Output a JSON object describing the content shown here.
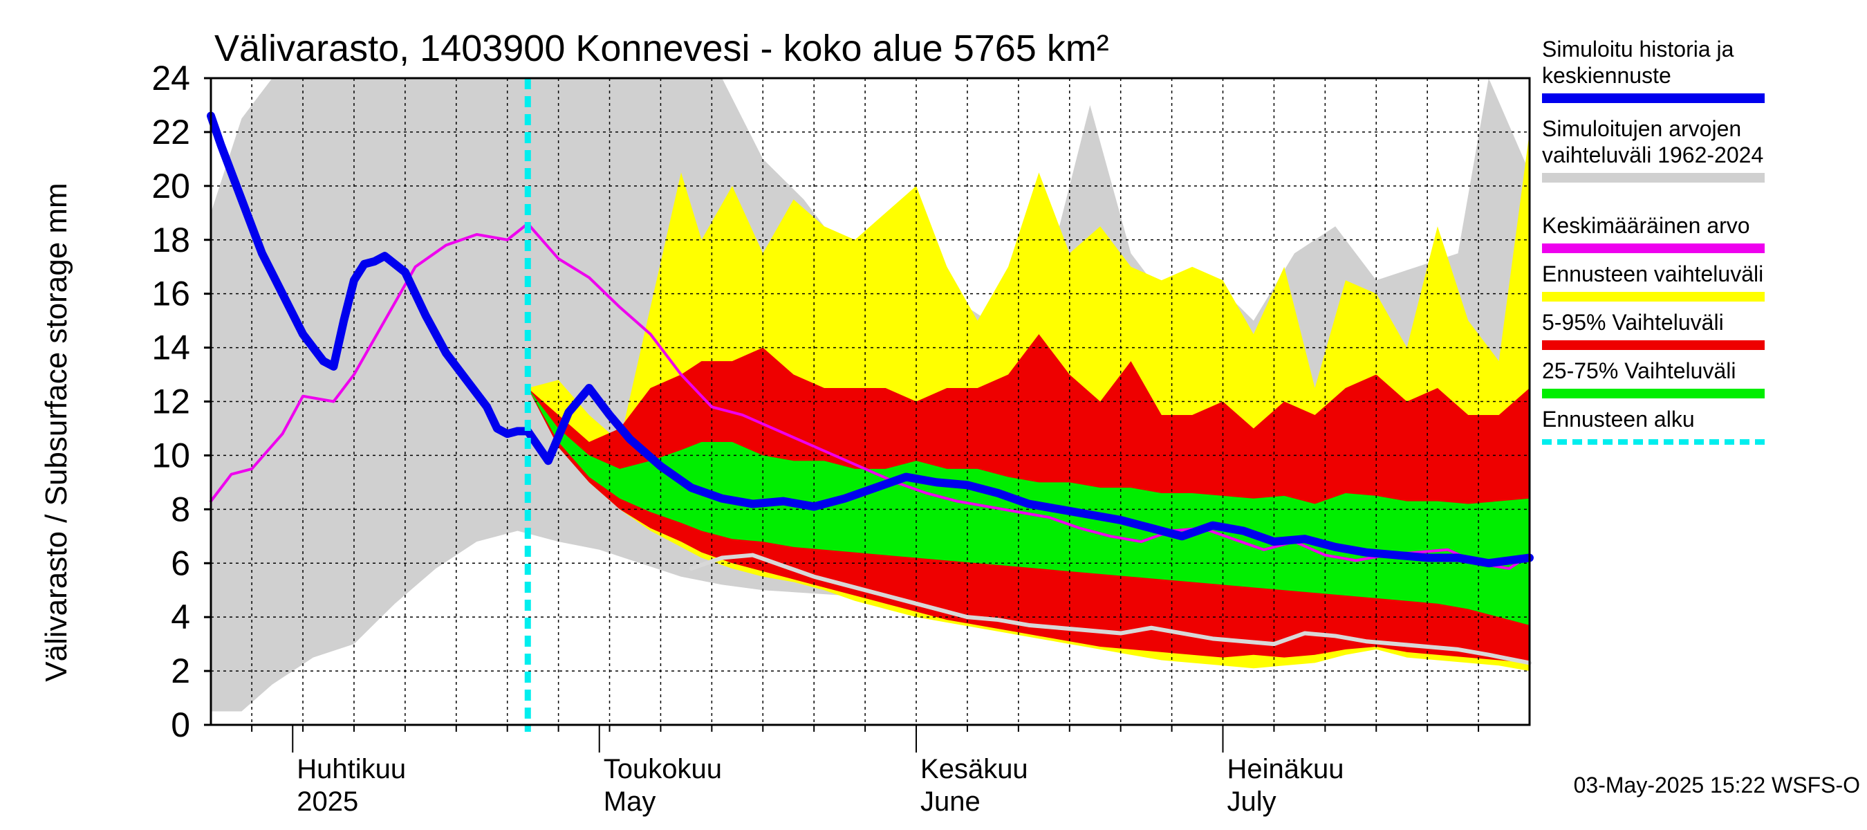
{
  "chart_data": {
    "type": "area",
    "title": "Välivarasto, 1403900 Konnevesi - koko alue 5765 km²",
    "ylabel": "Välivarasto / Subsurface storage  mm",
    "ylim": [
      0,
      24
    ],
    "yticks": [
      0,
      2,
      4,
      6,
      8,
      10,
      12,
      14,
      16,
      18,
      20,
      22,
      24
    ],
    "xlim": [
      "2025-03-24",
      "2025-07-31"
    ],
    "forecast_start": "2025-04-24",
    "grid": true,
    "legend_position": "right",
    "month_labels": [
      {
        "date": "2025-04-01",
        "line1": "Huhtikuu",
        "line2": "2025"
      },
      {
        "date": "2025-05-01",
        "line1": "Toukokuu",
        "line2": "May"
      },
      {
        "date": "2025-06-01",
        "line1": "Kesäkuu",
        "line2": "June"
      },
      {
        "date": "2025-07-01",
        "line1": "Heinäkuu",
        "line2": "July"
      }
    ],
    "timestamp": "03-May-2025 15:22 WSFS-O",
    "legend": [
      {
        "label": "Simuloitu historia ja keskiennuste",
        "color": "#0000ee",
        "style": "solid"
      },
      {
        "label": "Simuloitujen arvojen vaihteluväli 1962-2024",
        "color": "#d0d0d0",
        "style": "solid"
      },
      {
        "label": "Keskimääräinen arvo",
        "color": "#ee00ee",
        "style": "solid"
      },
      {
        "label": "Ennusteen vaihteluväli",
        "color": "#ffff00",
        "style": "solid"
      },
      {
        "label": "5-95% Vaihteluväli",
        "color": "#ee0000",
        "style": "solid"
      },
      {
        "label": "25-75% Vaihteluväli",
        "color": "#00ee00",
        "style": "solid"
      },
      {
        "label": "Ennusteen alku",
        "color": "#00eeee",
        "style": "dashed"
      }
    ],
    "series": [
      {
        "name": "Simuloitujen arvojen vaihteluväli 1962-2024",
        "kind": "band",
        "color": "#d0d0d0",
        "x": [
          "2025-03-24",
          "2025-03-27",
          "2025-03-30",
          "2025-04-03",
          "2025-04-07",
          "2025-04-11",
          "2025-04-15",
          "2025-04-19",
          "2025-04-23",
          "2025-04-27",
          "2025-05-01",
          "2025-05-05",
          "2025-05-09",
          "2025-05-13",
          "2025-05-17",
          "2025-05-21",
          "2025-05-25",
          "2025-05-29",
          "2025-06-02",
          "2025-06-06",
          "2025-06-10",
          "2025-06-14",
          "2025-06-18",
          "2025-06-22",
          "2025-06-26",
          "2025-06-30",
          "2025-07-04",
          "2025-07-08",
          "2025-07-12",
          "2025-07-16",
          "2025-07-20",
          "2025-07-24",
          "2025-07-27",
          "2025-07-31"
        ],
        "low": [
          0.5,
          0.5,
          1.5,
          2.5,
          3.0,
          4.5,
          5.8,
          6.8,
          7.2,
          6.8,
          6.5,
          6.0,
          5.5,
          5.2,
          5.0,
          4.9,
          4.8,
          4.7,
          4.6,
          4.6,
          4.7,
          4.5,
          4.4,
          4.3,
          4.2,
          4.1,
          4.0,
          3.9,
          3.8,
          3.6,
          3.4,
          3.2,
          3.0,
          2.8
        ],
        "high": [
          19.0,
          22.5,
          24.0,
          24.0,
          24.0,
          24.0,
          24.0,
          24.0,
          24.0,
          24.0,
          24.0,
          24.0,
          24.0,
          24.0,
          21.0,
          19.5,
          17.5,
          16.5,
          18.5,
          15.5,
          14.5,
          17.0,
          23.0,
          17.5,
          15.5,
          16.5,
          15.0,
          17.5,
          18.5,
          16.5,
          17.0,
          17.5,
          24.0,
          20.5
        ]
      },
      {
        "name": "Ennusteen vaihteluväli",
        "kind": "band",
        "color": "#ffff00",
        "x": [
          "2025-04-24",
          "2025-04-27",
          "2025-04-30",
          "2025-05-03",
          "2025-05-06",
          "2025-05-09",
          "2025-05-11",
          "2025-05-14",
          "2025-05-17",
          "2025-05-20",
          "2025-05-23",
          "2025-05-26",
          "2025-05-29",
          "2025-06-01",
          "2025-06-04",
          "2025-06-07",
          "2025-06-10",
          "2025-06-13",
          "2025-06-16",
          "2025-06-19",
          "2025-06-22",
          "2025-06-25",
          "2025-06-28",
          "2025-07-01",
          "2025-07-04",
          "2025-07-07",
          "2025-07-10",
          "2025-07-13",
          "2025-07-16",
          "2025-07-19",
          "2025-07-22",
          "2025-07-25",
          "2025-07-28",
          "2025-07-31"
        ],
        "low": [
          12.5,
          10.5,
          9.0,
          8.0,
          7.2,
          6.6,
          6.2,
          5.8,
          5.5,
          5.3,
          5.0,
          4.6,
          4.3,
          4.0,
          3.8,
          3.6,
          3.4,
          3.2,
          3.0,
          2.8,
          2.6,
          2.4,
          2.3,
          2.2,
          2.1,
          2.2,
          2.3,
          2.6,
          2.8,
          2.5,
          2.4,
          2.3,
          2.2,
          2.0
        ],
        "high": [
          12.5,
          12.8,
          11.5,
          10.5,
          15.5,
          20.5,
          18.0,
          20.0,
          17.5,
          19.5,
          18.5,
          18.0,
          19.0,
          20.0,
          17.0,
          15.0,
          17.0,
          20.5,
          17.5,
          18.5,
          17.0,
          16.5,
          17.0,
          16.5,
          14.5,
          17.0,
          12.5,
          16.5,
          16.0,
          14.0,
          18.5,
          15.0,
          13.5,
          22.0
        ]
      },
      {
        "name": "5-95% Vaihteluväli",
        "kind": "band",
        "color": "#ee0000",
        "x": [
          "2025-04-24",
          "2025-04-27",
          "2025-04-30",
          "2025-05-03",
          "2025-05-06",
          "2025-05-09",
          "2025-05-11",
          "2025-05-14",
          "2025-05-17",
          "2025-05-20",
          "2025-05-23",
          "2025-05-26",
          "2025-05-29",
          "2025-06-01",
          "2025-06-04",
          "2025-06-07",
          "2025-06-10",
          "2025-06-13",
          "2025-06-16",
          "2025-06-19",
          "2025-06-22",
          "2025-06-25",
          "2025-06-28",
          "2025-07-01",
          "2025-07-04",
          "2025-07-07",
          "2025-07-10",
          "2025-07-13",
          "2025-07-16",
          "2025-07-19",
          "2025-07-22",
          "2025-07-25",
          "2025-07-28",
          "2025-07-31"
        ],
        "low": [
          12.5,
          10.3,
          9.0,
          8.0,
          7.3,
          6.8,
          6.4,
          6.0,
          5.7,
          5.4,
          5.1,
          4.8,
          4.5,
          4.2,
          3.9,
          3.7,
          3.5,
          3.3,
          3.1,
          2.9,
          2.8,
          2.7,
          2.6,
          2.5,
          2.6,
          2.5,
          2.6,
          2.8,
          2.9,
          2.7,
          2.6,
          2.5,
          2.4,
          2.3
        ],
        "high": [
          12.5,
          11.5,
          10.5,
          11.0,
          12.5,
          13.0,
          13.5,
          13.5,
          14.0,
          13.0,
          12.5,
          12.5,
          12.5,
          12.0,
          12.5,
          12.5,
          13.0,
          14.5,
          13.0,
          12.0,
          13.5,
          11.5,
          11.5,
          12.0,
          11.0,
          12.0,
          11.5,
          12.5,
          13.0,
          12.0,
          12.5,
          11.5,
          11.5,
          12.5
        ]
      },
      {
        "name": "25-75% Vaihteluväli",
        "kind": "band",
        "color": "#00ee00",
        "x": [
          "2025-04-24",
          "2025-04-27",
          "2025-04-30",
          "2025-05-03",
          "2025-05-06",
          "2025-05-09",
          "2025-05-11",
          "2025-05-14",
          "2025-05-17",
          "2025-05-20",
          "2025-05-23",
          "2025-05-26",
          "2025-05-29",
          "2025-06-01",
          "2025-06-04",
          "2025-06-07",
          "2025-06-10",
          "2025-06-13",
          "2025-06-16",
          "2025-06-19",
          "2025-06-22",
          "2025-06-25",
          "2025-06-28",
          "2025-07-01",
          "2025-07-04",
          "2025-07-07",
          "2025-07-10",
          "2025-07-13",
          "2025-07-16",
          "2025-07-19",
          "2025-07-22",
          "2025-07-25",
          "2025-07-28",
          "2025-07-31"
        ],
        "low": [
          12.5,
          10.5,
          9.2,
          8.4,
          7.9,
          7.5,
          7.2,
          6.9,
          6.8,
          6.6,
          6.5,
          6.4,
          6.3,
          6.2,
          6.1,
          6.0,
          5.9,
          5.8,
          5.7,
          5.6,
          5.5,
          5.4,
          5.3,
          5.2,
          5.1,
          5.0,
          4.9,
          4.8,
          4.7,
          4.6,
          4.5,
          4.3,
          4.0,
          3.7
        ],
        "high": [
          12.5,
          11.0,
          10.0,
          9.5,
          9.8,
          10.2,
          10.5,
          10.5,
          10.0,
          9.8,
          9.8,
          9.5,
          9.5,
          9.8,
          9.5,
          9.5,
          9.2,
          9.0,
          9.0,
          8.8,
          8.8,
          8.6,
          8.6,
          8.5,
          8.4,
          8.5,
          8.2,
          8.6,
          8.5,
          8.3,
          8.3,
          8.2,
          8.3,
          8.4
        ]
      },
      {
        "name": "Keskimääräinen arvo",
        "kind": "line",
        "color": "#ee00ee",
        "x": [
          "2025-03-24",
          "2025-03-26",
          "2025-03-28",
          "2025-03-31",
          "2025-04-02",
          "2025-04-05",
          "2025-04-07",
          "2025-04-10",
          "2025-04-13",
          "2025-04-16",
          "2025-04-19",
          "2025-04-22",
          "2025-04-24",
          "2025-04-27",
          "2025-04-30",
          "2025-05-03",
          "2025-05-06",
          "2025-05-09",
          "2025-05-12",
          "2025-05-15",
          "2025-05-18",
          "2025-05-21",
          "2025-05-24",
          "2025-05-27",
          "2025-05-30",
          "2025-06-02",
          "2025-06-05",
          "2025-06-08",
          "2025-06-11",
          "2025-06-14",
          "2025-06-17",
          "2025-06-20",
          "2025-06-23",
          "2025-06-26",
          "2025-06-29",
          "2025-07-02",
          "2025-07-05",
          "2025-07-08",
          "2025-07-11",
          "2025-07-14",
          "2025-07-17",
          "2025-07-20",
          "2025-07-23",
          "2025-07-26",
          "2025-07-29",
          "2025-07-31"
        ],
        "y": [
          8.3,
          9.3,
          9.5,
          10.8,
          12.2,
          12.0,
          13.0,
          15.0,
          17.0,
          17.8,
          18.2,
          18.0,
          18.6,
          17.3,
          16.6,
          15.5,
          14.5,
          13.0,
          11.8,
          11.5,
          11.0,
          10.5,
          10.0,
          9.5,
          9.0,
          8.6,
          8.3,
          8.1,
          7.9,
          7.7,
          7.3,
          7.0,
          6.8,
          7.2,
          7.3,
          6.9,
          6.5,
          6.8,
          6.3,
          6.1,
          6.3,
          6.4,
          6.5,
          6.0,
          5.8,
          6.3
        ]
      },
      {
        "name": "Simuloitu historia ja keskiennuste",
        "kind": "line",
        "color": "#0000ee",
        "x": [
          "2025-03-24",
          "2025-03-25",
          "2025-03-27",
          "2025-03-29",
          "2025-03-31",
          "2025-04-02",
          "2025-04-04",
          "2025-04-05",
          "2025-04-06",
          "2025-04-07",
          "2025-04-08",
          "2025-04-09",
          "2025-04-10",
          "2025-04-12",
          "2025-04-13",
          "2025-04-14",
          "2025-04-15",
          "2025-04-16",
          "2025-04-18",
          "2025-04-20",
          "2025-04-21",
          "2025-04-22",
          "2025-04-23",
          "2025-04-24",
          "2025-04-26",
          "2025-04-28",
          "2025-04-30",
          "2025-05-02",
          "2025-05-04",
          "2025-05-07",
          "2025-05-10",
          "2025-05-13",
          "2025-05-16",
          "2025-05-19",
          "2025-05-22",
          "2025-05-25",
          "2025-05-28",
          "2025-05-31",
          "2025-06-03",
          "2025-06-06",
          "2025-06-09",
          "2025-06-12",
          "2025-06-15",
          "2025-06-18",
          "2025-06-21",
          "2025-06-24",
          "2025-06-27",
          "2025-06-30",
          "2025-07-03",
          "2025-07-06",
          "2025-07-09",
          "2025-07-12",
          "2025-07-15",
          "2025-07-18",
          "2025-07-21",
          "2025-07-24",
          "2025-07-27",
          "2025-07-31"
        ],
        "y": [
          22.6,
          21.5,
          19.5,
          17.5,
          16.0,
          14.5,
          13.5,
          13.3,
          15.0,
          16.5,
          17.1,
          17.2,
          17.4,
          16.8,
          16.0,
          15.2,
          14.5,
          13.8,
          12.8,
          11.8,
          11.0,
          10.8,
          10.9,
          10.9,
          9.8,
          11.6,
          12.5,
          11.5,
          10.6,
          9.6,
          8.8,
          8.4,
          8.2,
          8.3,
          8.1,
          8.4,
          8.8,
          9.2,
          9.0,
          8.9,
          8.6,
          8.2,
          8.0,
          7.8,
          7.6,
          7.3,
          7.0,
          7.4,
          7.2,
          6.8,
          6.9,
          6.6,
          6.4,
          6.3,
          6.2,
          6.2,
          6.0,
          6.2
        ]
      },
      {
        "name": "Simuloitujen arvojen vaihteluväli 1962-2024 (minimi)",
        "kind": "line",
        "color": "#d8d8d8",
        "x": [
          "2025-05-10",
          "2025-05-13",
          "2025-05-16",
          "2025-05-19",
          "2025-05-22",
          "2025-05-25",
          "2025-05-28",
          "2025-05-31",
          "2025-06-03",
          "2025-06-06",
          "2025-06-09",
          "2025-06-12",
          "2025-06-15",
          "2025-06-18",
          "2025-06-21",
          "2025-06-24",
          "2025-06-27",
          "2025-06-30",
          "2025-07-03",
          "2025-07-06",
          "2025-07-09",
          "2025-07-12",
          "2025-07-15",
          "2025-07-18",
          "2025-07-21",
          "2025-07-24",
          "2025-07-27",
          "2025-07-31"
        ],
        "y": [
          5.8,
          6.2,
          6.3,
          5.9,
          5.5,
          5.2,
          4.9,
          4.6,
          4.3,
          4.0,
          3.9,
          3.7,
          3.6,
          3.5,
          3.4,
          3.6,
          3.4,
          3.2,
          3.1,
          3.0,
          3.4,
          3.3,
          3.1,
          3.0,
          2.9,
          2.8,
          2.6,
          2.3
        ]
      }
    ]
  }
}
